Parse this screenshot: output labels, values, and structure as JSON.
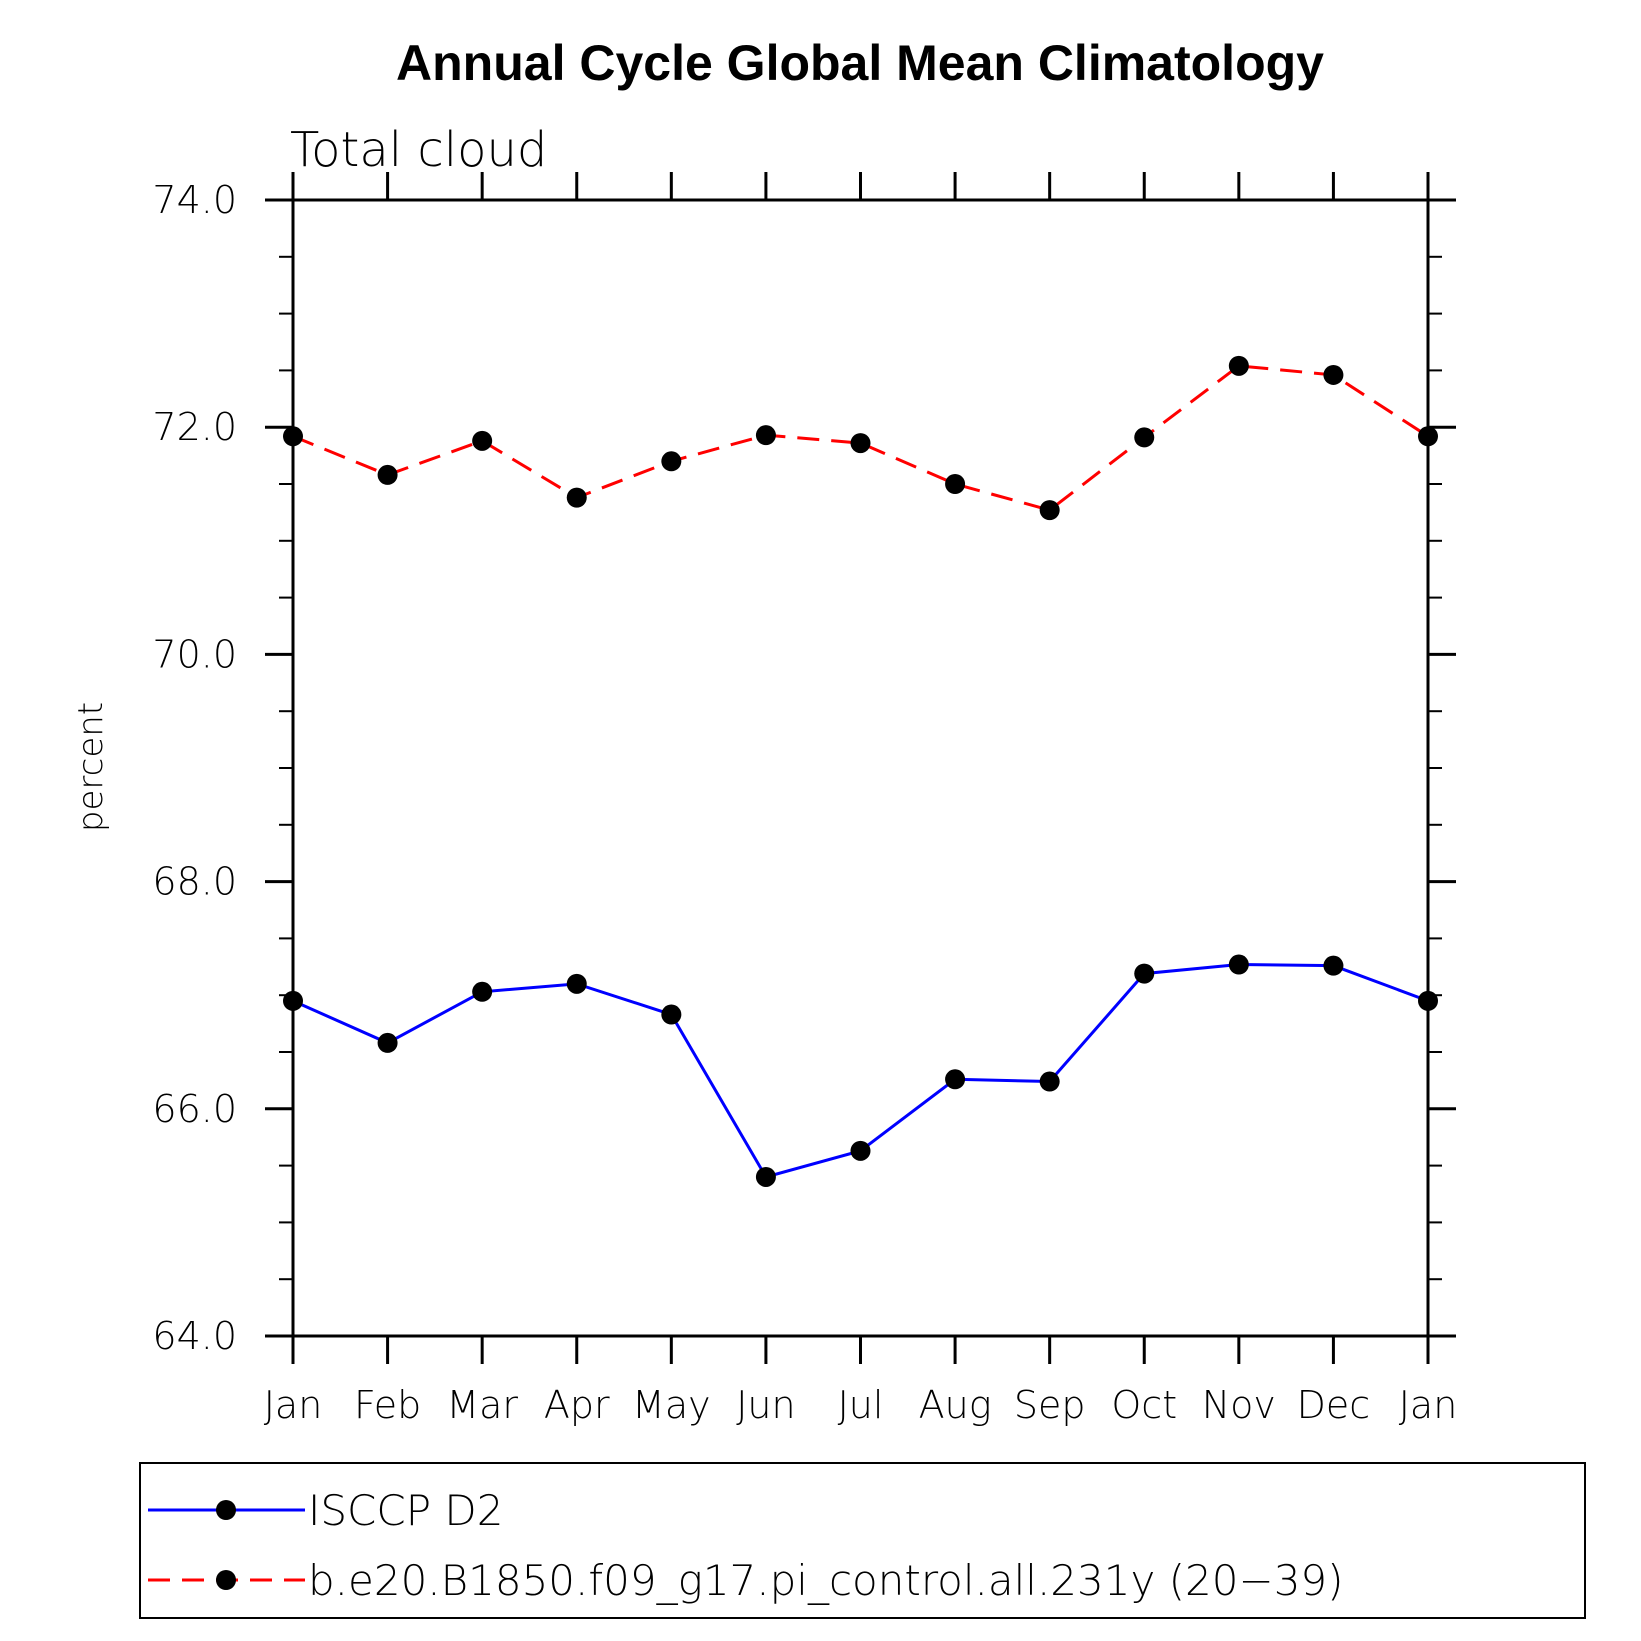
{
  "chart_data": {
    "type": "line",
    "title": "Annual Cycle Global Mean Climatology",
    "subtitle": "Total cloud",
    "ylabel": "percent",
    "xlabel": "",
    "categories": [
      "Jan",
      "Feb",
      "Mar",
      "Apr",
      "May",
      "Jun",
      "Jul",
      "Aug",
      "Sep",
      "Oct",
      "Nov",
      "Dec",
      "Jan"
    ],
    "ylim": [
      64.0,
      74.0
    ],
    "yticks": [
      "64.0",
      "66.0",
      "68.0",
      "70.0",
      "72.0",
      "74.0"
    ],
    "grid": false,
    "legend_position": "bottom",
    "series": [
      {
        "name": "ISCCP D2",
        "color": "#0000ff",
        "style": "solid",
        "marker": "filled-circle",
        "values": [
          66.95,
          66.58,
          67.03,
          67.1,
          66.83,
          65.4,
          65.63,
          66.26,
          66.24,
          67.19,
          67.27,
          67.26,
          66.95
        ]
      },
      {
        "name": "b.e20.B1850.f09_g17.pi_control.all.231y (20−39)",
        "color": "#ff0000",
        "style": "dashed",
        "marker": "filled-circle",
        "values": [
          71.92,
          71.58,
          71.88,
          71.38,
          71.7,
          71.93,
          71.86,
          71.5,
          71.27,
          71.91,
          72.54,
          72.46,
          71.92
        ]
      }
    ]
  }
}
